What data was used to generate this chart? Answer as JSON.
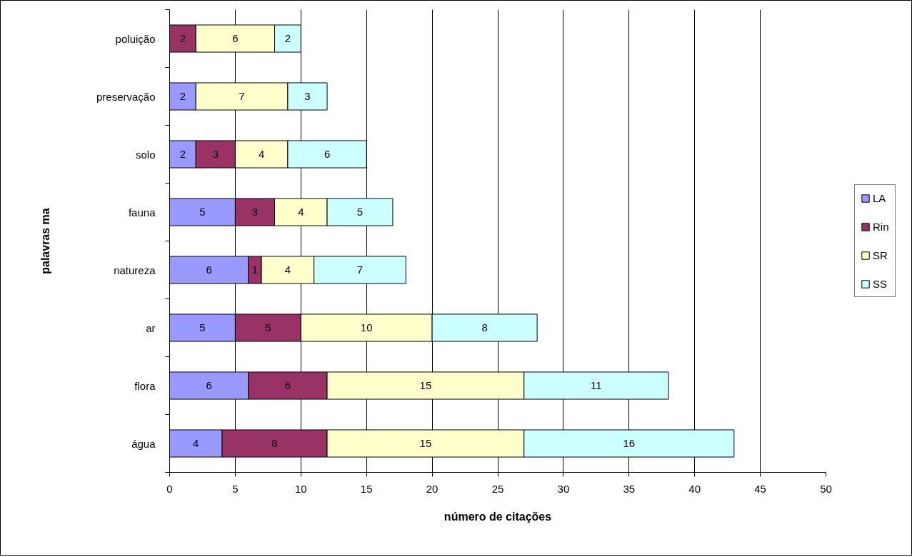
{
  "chart_data": {
    "type": "bar",
    "orientation": "horizontal",
    "stacked": true,
    "xlabel": "número de citações",
    "ylabel": "palavras ma",
    "categories": [
      "poluição",
      "preservação",
      "solo",
      "fauna",
      "natureza",
      "ar",
      "flora",
      "água"
    ],
    "series": [
      {
        "name": "LA",
        "color": "#9999ff",
        "values": [
          null,
          2,
          2,
          5,
          6,
          5,
          6,
          4
        ]
      },
      {
        "name": "Rin",
        "color": "#993366",
        "values": [
          2,
          null,
          3,
          3,
          1,
          5,
          6,
          8
        ]
      },
      {
        "name": "SR",
        "color": "#ffffcc",
        "values": [
          6,
          7,
          4,
          4,
          4,
          10,
          15,
          15
        ]
      },
      {
        "name": "SS",
        "color": "#ccffff",
        "values": [
          2,
          3,
          6,
          5,
          7,
          8,
          11,
          16
        ]
      }
    ],
    "xlim": [
      0,
      50
    ],
    "xticks": [
      0,
      5,
      10,
      15,
      20,
      25,
      30,
      35,
      40,
      45,
      50
    ],
    "grid": "x",
    "legend": "right",
    "data_labels": true
  }
}
